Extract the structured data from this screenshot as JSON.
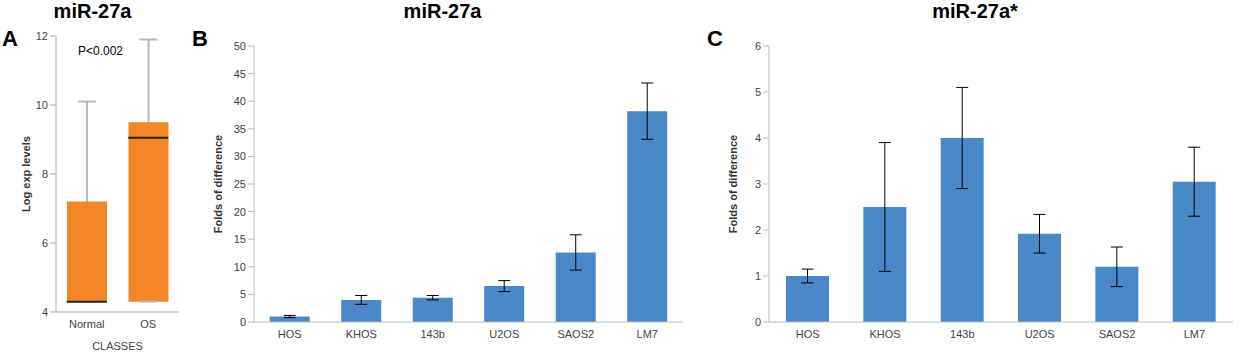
{
  "chart_data": [
    {
      "type": "box",
      "panel": "A",
      "title": "miR-27a",
      "annotations": [
        "P<0.002"
      ],
      "x_label": "CLASSES",
      "y_label": "Log exp levels",
      "categories": [
        "Normal",
        "OS"
      ],
      "boxes": [
        {
          "min": 4.3,
          "q1": 4.3,
          "median": 4.3,
          "q3": 7.2,
          "max": 10.1
        },
        {
          "min": 4.3,
          "q1": 4.3,
          "median": 9.05,
          "q3": 9.5,
          "max": 11.9
        }
      ],
      "color": "#f4862a",
      "ylim": [
        4,
        12
      ],
      "yticks": [
        4,
        6,
        8,
        10,
        12
      ]
    },
    {
      "type": "bar",
      "panel": "B",
      "title": "miR-27a",
      "y_label": "Folds of difference",
      "categories": [
        "HOS",
        "KHOS",
        "143b",
        "U2OS",
        "SAOS2",
        "LM7"
      ],
      "values": [
        1,
        4,
        4.4,
        6.5,
        12.6,
        38.2
      ],
      "errors": [
        0.2,
        0.8,
        0.4,
        1.0,
        3.2,
        5.1
      ],
      "color": "#4a89c8",
      "ylim": [
        0,
        50
      ],
      "yticks": [
        0,
        5,
        10,
        15,
        20,
        25,
        30,
        35,
        40,
        45,
        50
      ]
    },
    {
      "type": "bar",
      "panel": "C",
      "title": "miR-27a*",
      "y_label": "Folds of difference",
      "categories": [
        "HOS",
        "KHOS",
        "143b",
        "U2OS",
        "SAOS2",
        "LM7"
      ],
      "values": [
        1,
        2.5,
        4,
        1.92,
        1.2,
        3.05
      ],
      "errors": [
        0.15,
        1.4,
        1.1,
        0.42,
        0.43,
        0.75
      ],
      "color": "#4a89c8",
      "ylim": [
        0,
        6
      ],
      "yticks": [
        0,
        1,
        2,
        3,
        4,
        5,
        6
      ]
    }
  ]
}
